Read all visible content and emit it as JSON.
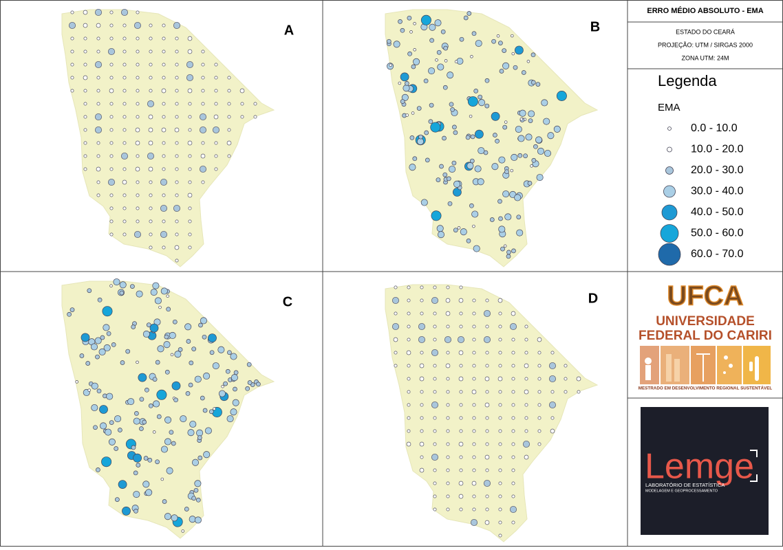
{
  "header": {
    "title": "ERRO MÉDIO ABSOLUTO - EMA",
    "state": "ESTADO DO CEARÁ",
    "projection": "PROJEÇÃO: UTM / SIRGAS 2000",
    "zone": "ZONA UTM: 24M"
  },
  "panels": [
    {
      "label": "A"
    },
    {
      "label": "B"
    },
    {
      "label": "C"
    },
    {
      "label": "D"
    }
  ],
  "legend": {
    "title": "Legenda",
    "field": "EMA",
    "items": [
      {
        "label": "0.0 - 10.0",
        "color": "#ffffff"
      },
      {
        "label": "10.0 - 20.0",
        "color": "#ffffff"
      },
      {
        "label": "20.0 - 30.0",
        "color": "#a9c6dc"
      },
      {
        "label": "30.0 - 40.0",
        "color": "#aacfe6"
      },
      {
        "label": "40.0 - 50.0",
        "color": "#1e9ad4"
      },
      {
        "label": "50.0 - 60.0",
        "color": "#16a6da"
      },
      {
        "label": "60.0 - 70.0",
        "color": "#1f6aaa"
      }
    ]
  },
  "logos": {
    "ufca": {
      "name": "UFCA",
      "line1": "UNIVERSIDADE",
      "line2": "FEDERAL DO CARIRI",
      "program": "MESTRADO EM DESENVOLVIMENTO REGIONAL SUSTENTÁVEL"
    },
    "lemge": {
      "name": "Lemge",
      "line1": "LABORATÓRIO DE ESTATÍSTICA",
      "line2": "MODELAGEM E GEOPROCESSAMENTO"
    }
  }
}
